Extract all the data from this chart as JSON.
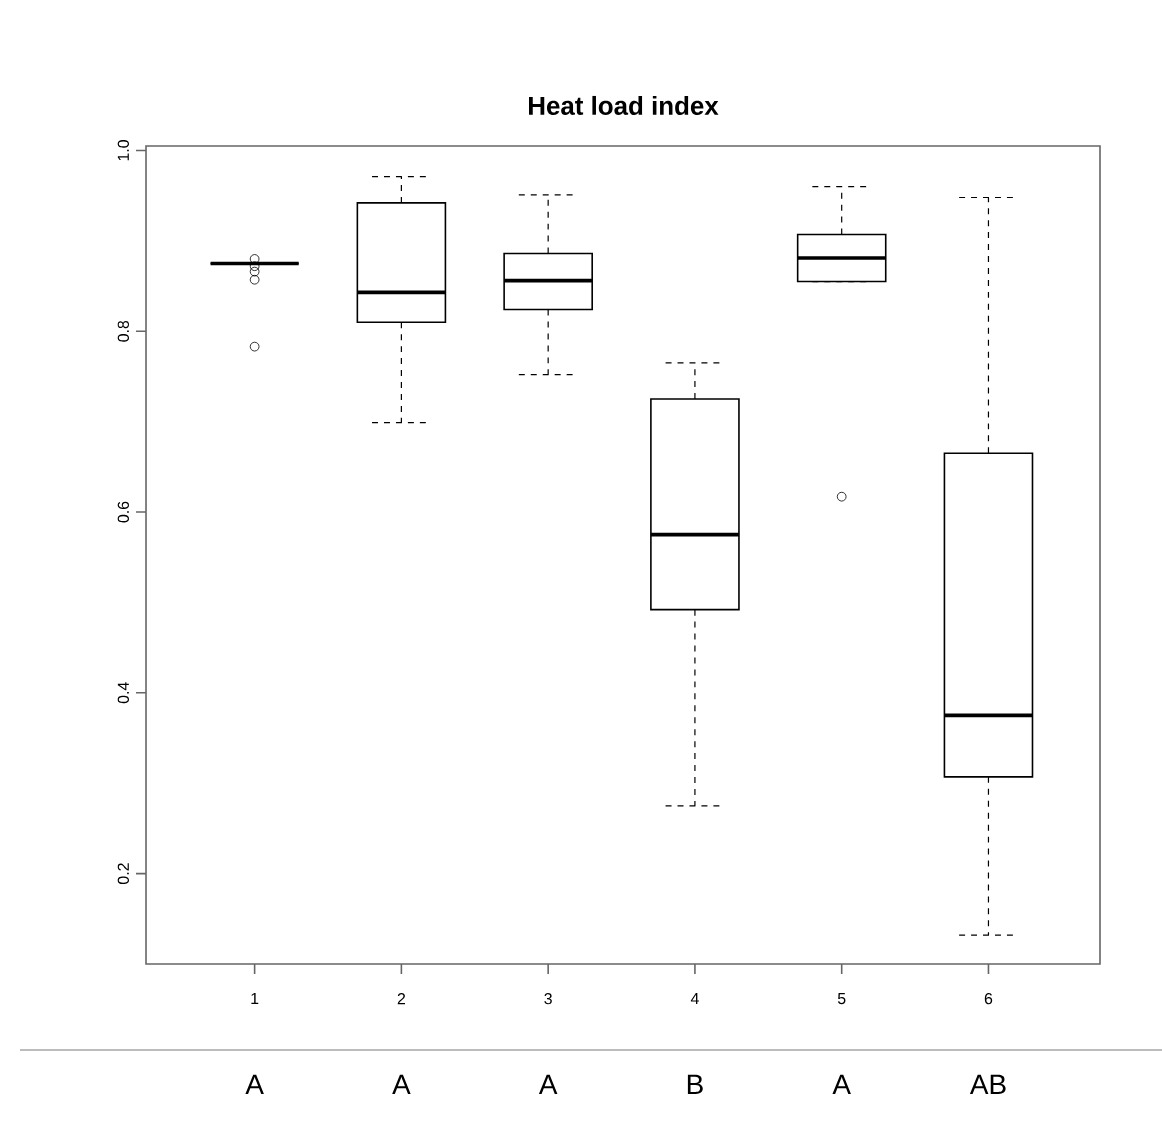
{
  "chart_data": {
    "type": "box",
    "title": "Heat load index",
    "categories": [
      "1",
      "2",
      "3",
      "4",
      "5",
      "6"
    ],
    "boxes": [
      {
        "low": 0.875,
        "q1": 0.875,
        "median": 0.875,
        "q3": 0.875,
        "high": 0.875,
        "outliers": [
          0.88,
          0.872,
          0.866,
          0.857,
          0.783
        ]
      },
      {
        "low": 0.699,
        "q1": 0.81,
        "median": 0.843,
        "q3": 0.942,
        "high": 0.971
      },
      {
        "low": 0.752,
        "q1": 0.824,
        "median": 0.856,
        "q3": 0.886,
        "high": 0.951
      },
      {
        "low": 0.275,
        "q1": 0.492,
        "median": 0.575,
        "q3": 0.725,
        "high": 0.765
      },
      {
        "low": 0.855,
        "q1": 0.855,
        "median": 0.881,
        "q3": 0.907,
        "high": 0.96,
        "outliers": [
          0.617
        ]
      },
      {
        "low": 0.132,
        "q1": 0.307,
        "median": 0.375,
        "q3": 0.665,
        "high": 0.948
      }
    ],
    "color": "#000000",
    "ylim": [
      0.1,
      1.005
    ],
    "yticks": [
      0.2,
      0.4,
      0.6,
      0.8,
      {
        "value": 1.0,
        "label": "1.0"
      }
    ],
    "annotations": [
      "A",
      "A",
      "A",
      "B",
      "A",
      "AB"
    ]
  }
}
